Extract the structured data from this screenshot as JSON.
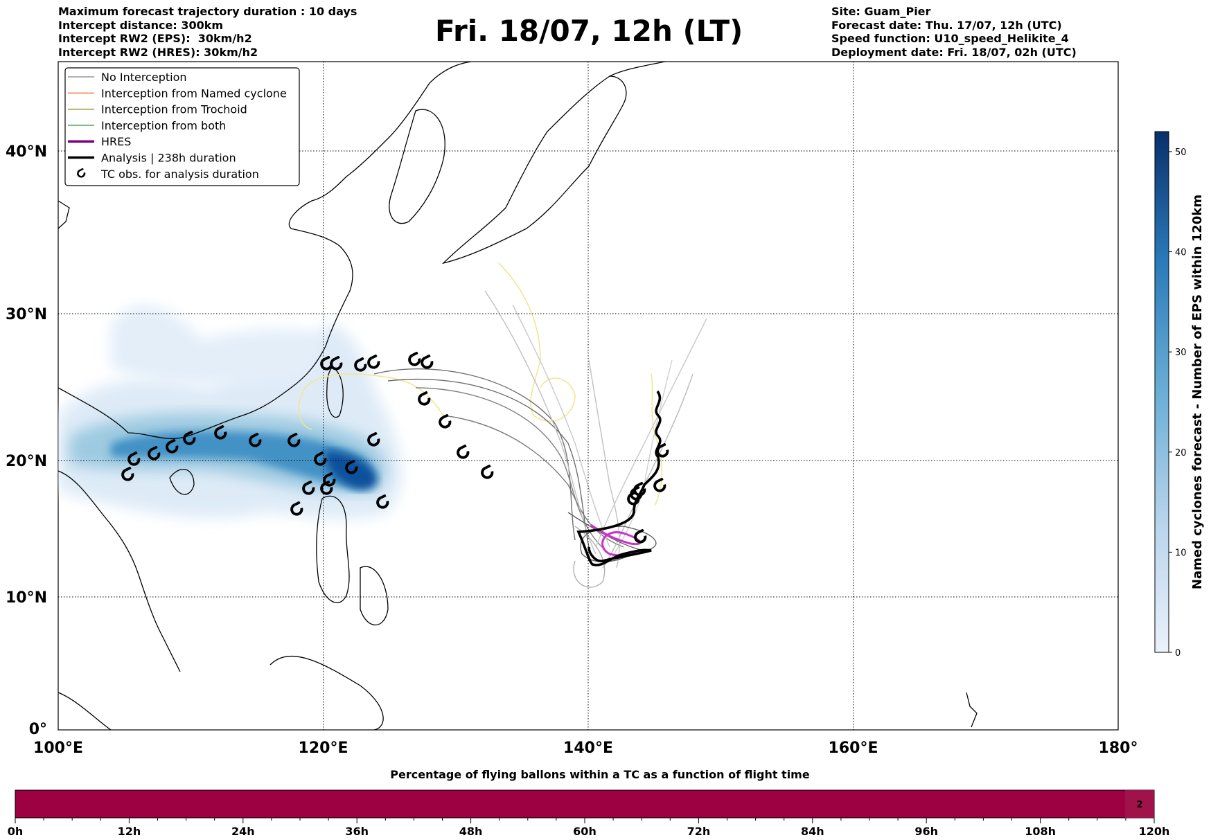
{
  "header": {
    "left": [
      "Maximum forecast trajectory duration : 10 days",
      "Intercept distance: 300km",
      "Intercept RW2 (EPS):  30km/h2",
      "Intercept RW2 (HRES): 30km/h2"
    ],
    "title": "Fri. 18/07, 12h (LT)",
    "right": [
      "Site: Guam_Pier",
      "Forecast date: Thu. 17/07, 12h (UTC)",
      "Speed function: U10_speed_Helikite_4",
      "Deployment date: Fri. 18/07, 02h (UTC)"
    ]
  },
  "map": {
    "lat_ticks": [
      {
        "v": 40,
        "label": "40°N"
      },
      {
        "v": 30,
        "label": "30°N"
      },
      {
        "v": 20,
        "label": "20°N"
      },
      {
        "v": 10,
        "label": "10°N"
      },
      {
        "v": 0,
        "label": "0°"
      }
    ],
    "lon_ticks": [
      {
        "v": 100,
        "label": "100°E"
      },
      {
        "v": 120,
        "label": "120°E"
      },
      {
        "v": 140,
        "label": "140°E"
      },
      {
        "v": 160,
        "label": "160°E"
      },
      {
        "v": 180,
        "label": "180°"
      }
    ],
    "legend": [
      {
        "label": "No Interception",
        "color": "#808080",
        "style": "thin"
      },
      {
        "label": "Interception from Named cyclone",
        "color": "#ff4500",
        "style": "thin"
      },
      {
        "label": "Interception from Trochoid",
        "color": "#808000",
        "style": "thin"
      },
      {
        "label": "Interception from both",
        "color": "#228b22",
        "style": "thin"
      },
      {
        "label": "HRES",
        "color": "#800080",
        "style": "thick"
      },
      {
        "label": "Analysis | 238h duration",
        "color": "#000000",
        "style": "thick"
      },
      {
        "label": "TC obs. for analysis duration",
        "color": "#000000",
        "style": "marker"
      }
    ],
    "colors": {
      "eps_track": "#a9a9a9",
      "trochoid": "#f0e68c",
      "hres": "#cc33cc",
      "analysis": "#000000"
    }
  },
  "colorbar": {
    "label": "Named cyclones forecast - Number of EPS within 120km",
    "ticks": [
      0,
      10,
      20,
      30,
      40,
      50
    ],
    "max": 52,
    "color_low": "#eaf2fb",
    "color_high": "#08306b"
  },
  "timebar": {
    "title": "Percentage of flying ballons within a TC as a function of flight time",
    "ticks": [
      "0h",
      "12h",
      "24h",
      "36h",
      "48h",
      "60h",
      "72h",
      "84h",
      "96h",
      "108h",
      "120h"
    ],
    "fill_color": "#9e0142",
    "end_label": "2"
  }
}
